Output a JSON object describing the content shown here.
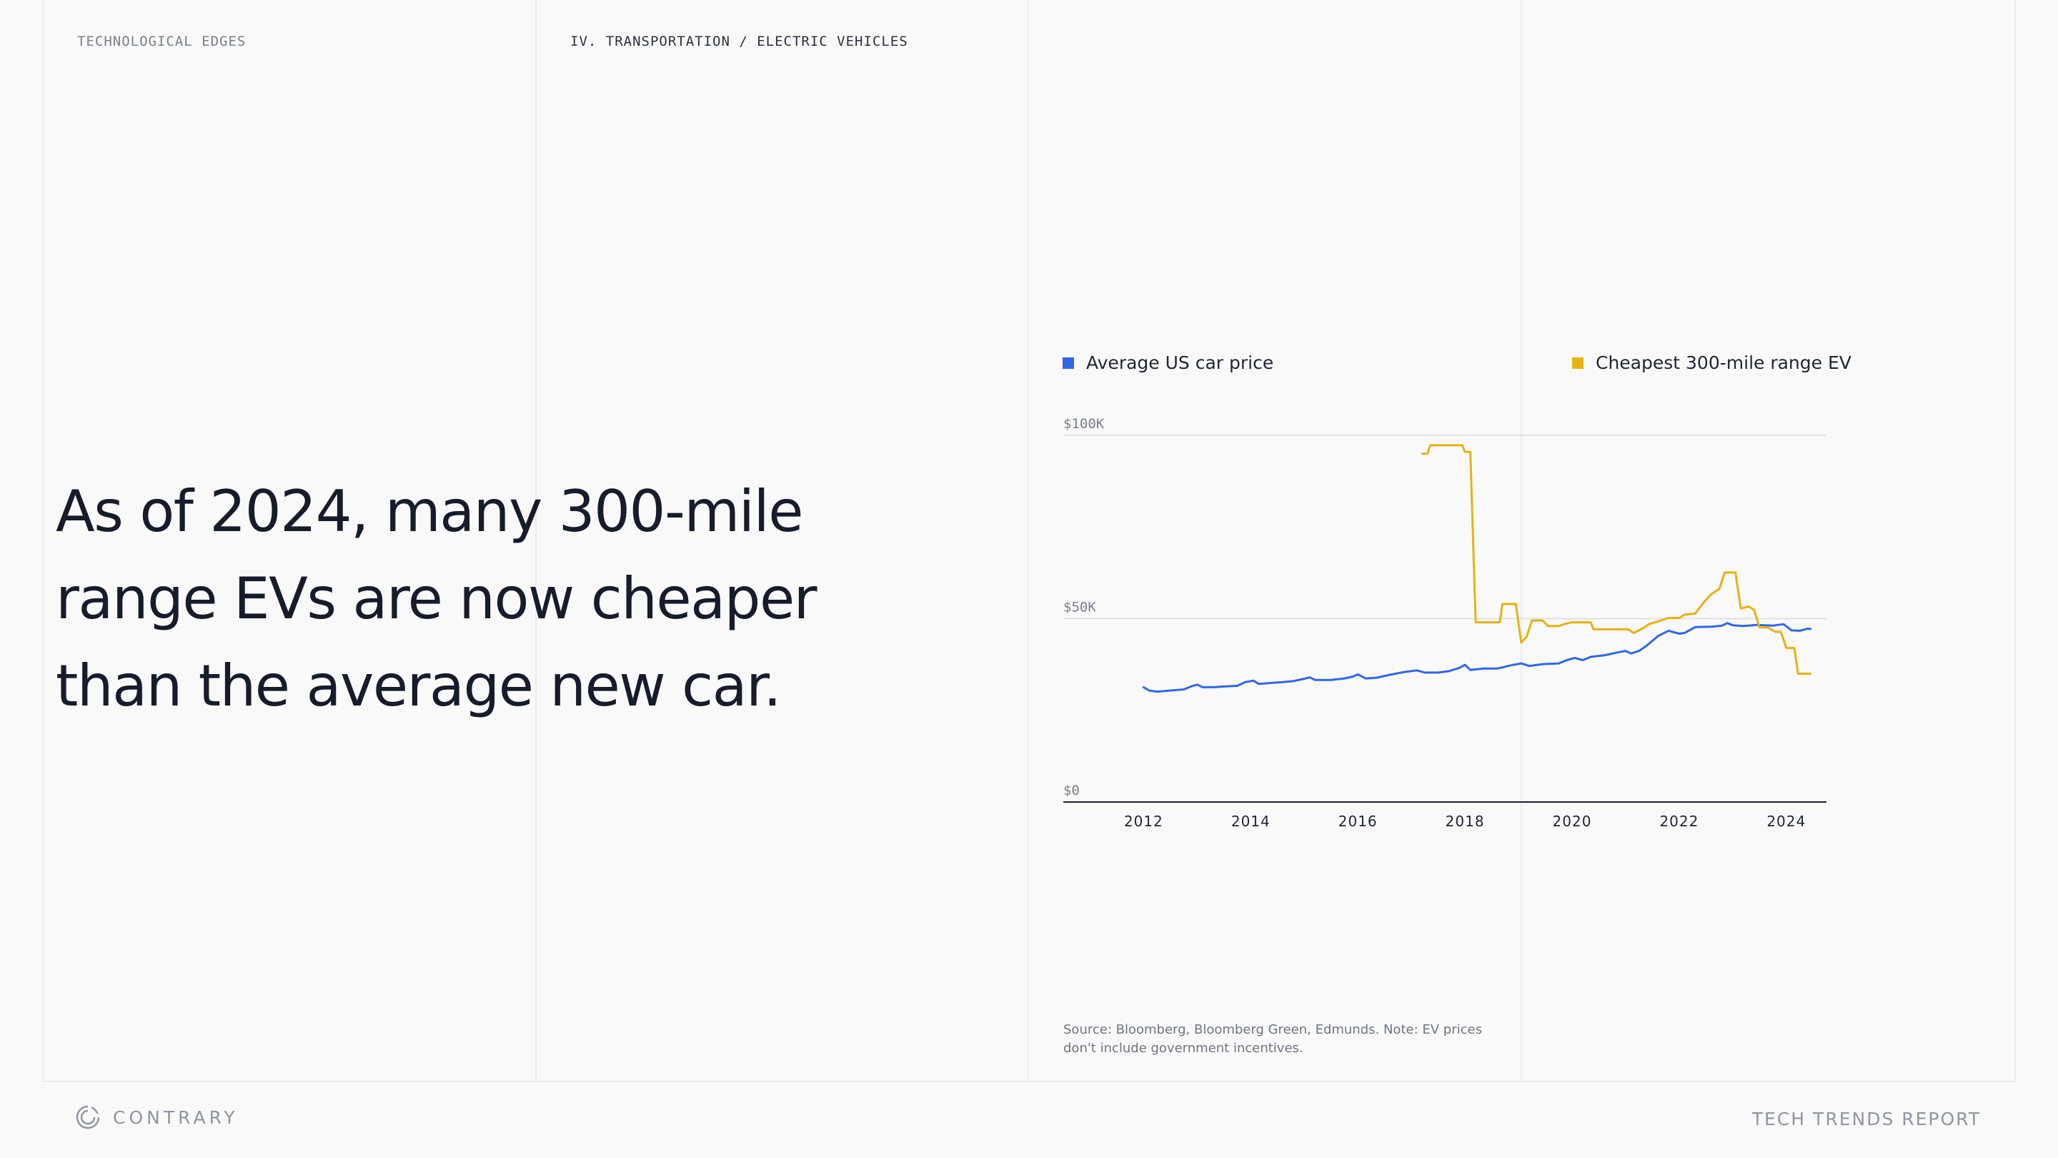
{
  "header": {
    "section_left": "TECHNOLOGICAL EDGES",
    "section_right": "IV. TRANSPORTATION / ELECTRIC VEHICLES"
  },
  "headline": "As of 2024, many 300-mile range EVs are now cheaper than the average new car.",
  "source_note": "Source: Bloomberg, Bloomberg Green, Edmunds. Note: EV prices don't include government incentives.",
  "footer": {
    "brand": "CONTRARY",
    "report": "TECH TRENDS REPORT"
  },
  "colors": {
    "avg": "#2f67e8",
    "ev": "#e5b214",
    "axis": "#1b2232",
    "grid": "#d9dbdf",
    "tick_text": "#1f2533",
    "y_tick_text": "#77808c"
  },
  "chart_data": {
    "type": "line",
    "title": "",
    "xlabel": "",
    "ylabel": "",
    "xlim": [
      2010.5,
      2024.75
    ],
    "ylim": [
      0,
      100000
    ],
    "x_ticks": [
      {
        "value": 2012,
        "label": "2012"
      },
      {
        "value": 2014,
        "label": "2014"
      },
      {
        "value": 2016,
        "label": "2016"
      },
      {
        "value": 2018,
        "label": "2018"
      },
      {
        "value": 2020,
        "label": "2020"
      },
      {
        "value": 2022,
        "label": "2022"
      },
      {
        "value": 2024,
        "label": "2024"
      }
    ],
    "y_ticks": [
      {
        "value": 0,
        "label": "$0"
      },
      {
        "value": 50000,
        "label": "$50K"
      },
      {
        "value": 100000,
        "label": "$100K"
      }
    ],
    "grid": true,
    "legend": "top",
    "series": [
      {
        "name": "Average US car price",
        "color": "#2f67e8",
        "points": [
          [
            2012.0,
            31300
          ],
          [
            2012.1,
            30400
          ],
          [
            2012.25,
            30100
          ],
          [
            2012.5,
            30400
          ],
          [
            2012.75,
            30700
          ],
          [
            2012.9,
            31600
          ],
          [
            2013.0,
            32000
          ],
          [
            2013.1,
            31300
          ],
          [
            2013.3,
            31300
          ],
          [
            2013.5,
            31500
          ],
          [
            2013.75,
            31700
          ],
          [
            2013.9,
            32700
          ],
          [
            2014.05,
            33100
          ],
          [
            2014.15,
            32200
          ],
          [
            2014.4,
            32500
          ],
          [
            2014.6,
            32700
          ],
          [
            2014.8,
            33000
          ],
          [
            2015.0,
            33600
          ],
          [
            2015.1,
            34000
          ],
          [
            2015.2,
            33300
          ],
          [
            2015.5,
            33300
          ],
          [
            2015.75,
            33700
          ],
          [
            2015.9,
            34200
          ],
          [
            2016.0,
            34800
          ],
          [
            2016.15,
            33700
          ],
          [
            2016.35,
            33900
          ],
          [
            2016.6,
            34700
          ],
          [
            2016.85,
            35400
          ],
          [
            2017.1,
            35900
          ],
          [
            2017.25,
            35300
          ],
          [
            2017.5,
            35300
          ],
          [
            2017.7,
            35700
          ],
          [
            2017.9,
            36600
          ],
          [
            2018.0,
            37400
          ],
          [
            2018.1,
            36000
          ],
          [
            2018.35,
            36400
          ],
          [
            2018.6,
            36400
          ],
          [
            2018.9,
            37400
          ],
          [
            2019.05,
            37800
          ],
          [
            2019.2,
            37100
          ],
          [
            2019.45,
            37600
          ],
          [
            2019.75,
            37800
          ],
          [
            2019.9,
            38700
          ],
          [
            2020.05,
            39300
          ],
          [
            2020.2,
            38700
          ],
          [
            2020.35,
            39600
          ],
          [
            2020.6,
            40000
          ],
          [
            2020.85,
            40800
          ],
          [
            2021.0,
            41200
          ],
          [
            2021.1,
            40500
          ],
          [
            2021.25,
            41200
          ],
          [
            2021.4,
            42700
          ],
          [
            2021.6,
            45200
          ],
          [
            2021.8,
            46700
          ],
          [
            2022.0,
            45900
          ],
          [
            2022.1,
            46100
          ],
          [
            2022.3,
            47700
          ],
          [
            2022.6,
            47800
          ],
          [
            2022.8,
            48100
          ],
          [
            2022.9,
            48800
          ],
          [
            2023.0,
            48200
          ],
          [
            2023.2,
            48000
          ],
          [
            2023.45,
            48300
          ],
          [
            2023.75,
            48100
          ],
          [
            2023.95,
            48500
          ],
          [
            2024.1,
            46800
          ],
          [
            2024.25,
            46700
          ],
          [
            2024.4,
            47300
          ],
          [
            2024.45,
            47200
          ]
        ]
      },
      {
        "name": "Cheapest 300-mile range EV",
        "color": "#e5b214",
        "points": [
          [
            2017.2,
            95000
          ],
          [
            2017.3,
            95000
          ],
          [
            2017.35,
            97300
          ],
          [
            2017.95,
            97300
          ],
          [
            2018.0,
            95500
          ],
          [
            2018.1,
            95500
          ],
          [
            2018.2,
            49000
          ],
          [
            2018.65,
            49000
          ],
          [
            2018.7,
            54000
          ],
          [
            2018.95,
            54000
          ],
          [
            2019.05,
            43500
          ],
          [
            2019.15,
            45000
          ],
          [
            2019.25,
            49500
          ],
          [
            2019.45,
            49500
          ],
          [
            2019.55,
            48000
          ],
          [
            2019.75,
            48000
          ],
          [
            2019.85,
            48500
          ],
          [
            2020.0,
            49000
          ],
          [
            2020.35,
            49000
          ],
          [
            2020.4,
            47100
          ],
          [
            2021.05,
            47100
          ],
          [
            2021.15,
            46100
          ],
          [
            2021.3,
            47200
          ],
          [
            2021.45,
            48600
          ],
          [
            2021.6,
            49200
          ],
          [
            2021.8,
            50200
          ],
          [
            2022.0,
            50200
          ],
          [
            2022.1,
            51100
          ],
          [
            2022.3,
            51400
          ],
          [
            2022.45,
            54300
          ],
          [
            2022.6,
            56700
          ],
          [
            2022.75,
            58100
          ],
          [
            2022.85,
            62600
          ],
          [
            2023.05,
            62600
          ],
          [
            2023.15,
            52800
          ],
          [
            2023.3,
            53300
          ],
          [
            2023.4,
            52400
          ],
          [
            2023.5,
            47600
          ],
          [
            2023.65,
            47600
          ],
          [
            2023.8,
            46400
          ],
          [
            2023.9,
            46400
          ],
          [
            2024.0,
            42000
          ],
          [
            2024.15,
            42000
          ],
          [
            2024.22,
            35000
          ],
          [
            2024.45,
            35000
          ]
        ]
      }
    ]
  }
}
